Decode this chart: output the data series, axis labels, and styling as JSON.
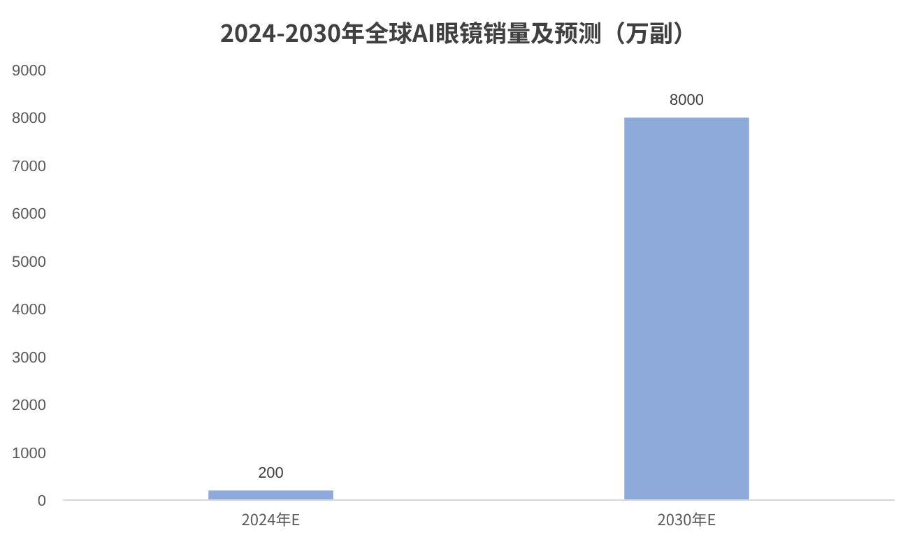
{
  "chart_data": {
    "type": "bar",
    "title": "2024-2030年全球AI眼镜销量及预测（万副）",
    "categories": [
      "2024年E",
      "2030年E"
    ],
    "values": [
      200,
      8000
    ],
    "color": "#8eaadb",
    "ylim": [
      0,
      9000
    ],
    "yticks": [
      0,
      1000,
      2000,
      3000,
      4000,
      5000,
      6000,
      7000,
      8000,
      9000
    ],
    "data_labels": true
  }
}
